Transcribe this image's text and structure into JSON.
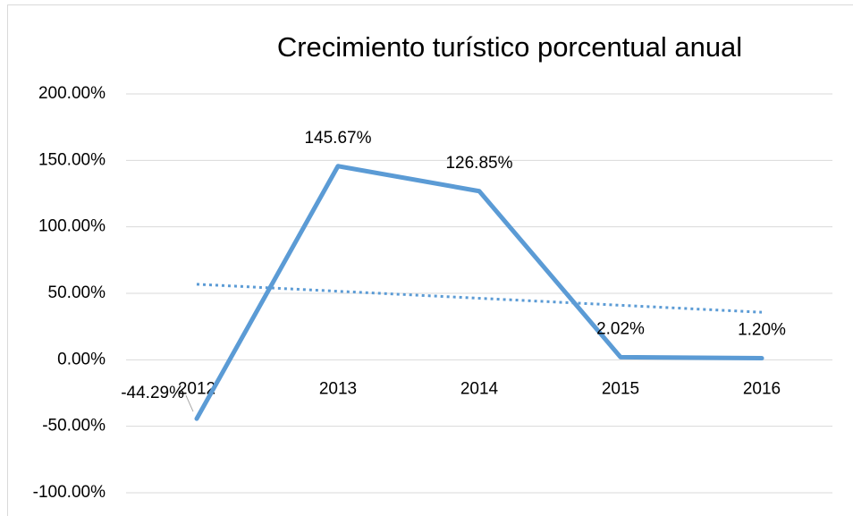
{
  "chart_data": {
    "type": "line",
    "title": "Crecimiento turístico porcentual anual",
    "categories": [
      "2012",
      "2013",
      "2014",
      "2015",
      "2016"
    ],
    "values": [
      -44.29,
      145.67,
      126.85,
      2.02,
      1.2
    ],
    "value_labels": [
      "-44.29%",
      "145.67%",
      "126.85%",
      "2.02%",
      "1.20%"
    ],
    "color": "#5b9bd5",
    "trendline": "linear",
    "ylim": [
      -100,
      200
    ],
    "yticks": [
      {
        "value": -100,
        "label": "-100.00%"
      },
      {
        "value": -50,
        "label": "-50.00%"
      },
      {
        "value": 0,
        "label": "0.00%"
      },
      {
        "value": 50,
        "label": "50.00%"
      },
      {
        "value": 100,
        "label": "100.00%"
      },
      {
        "value": 150,
        "label": "150.00%"
      },
      {
        "value": 200,
        "label": "200.00%"
      }
    ],
    "grid": true
  }
}
